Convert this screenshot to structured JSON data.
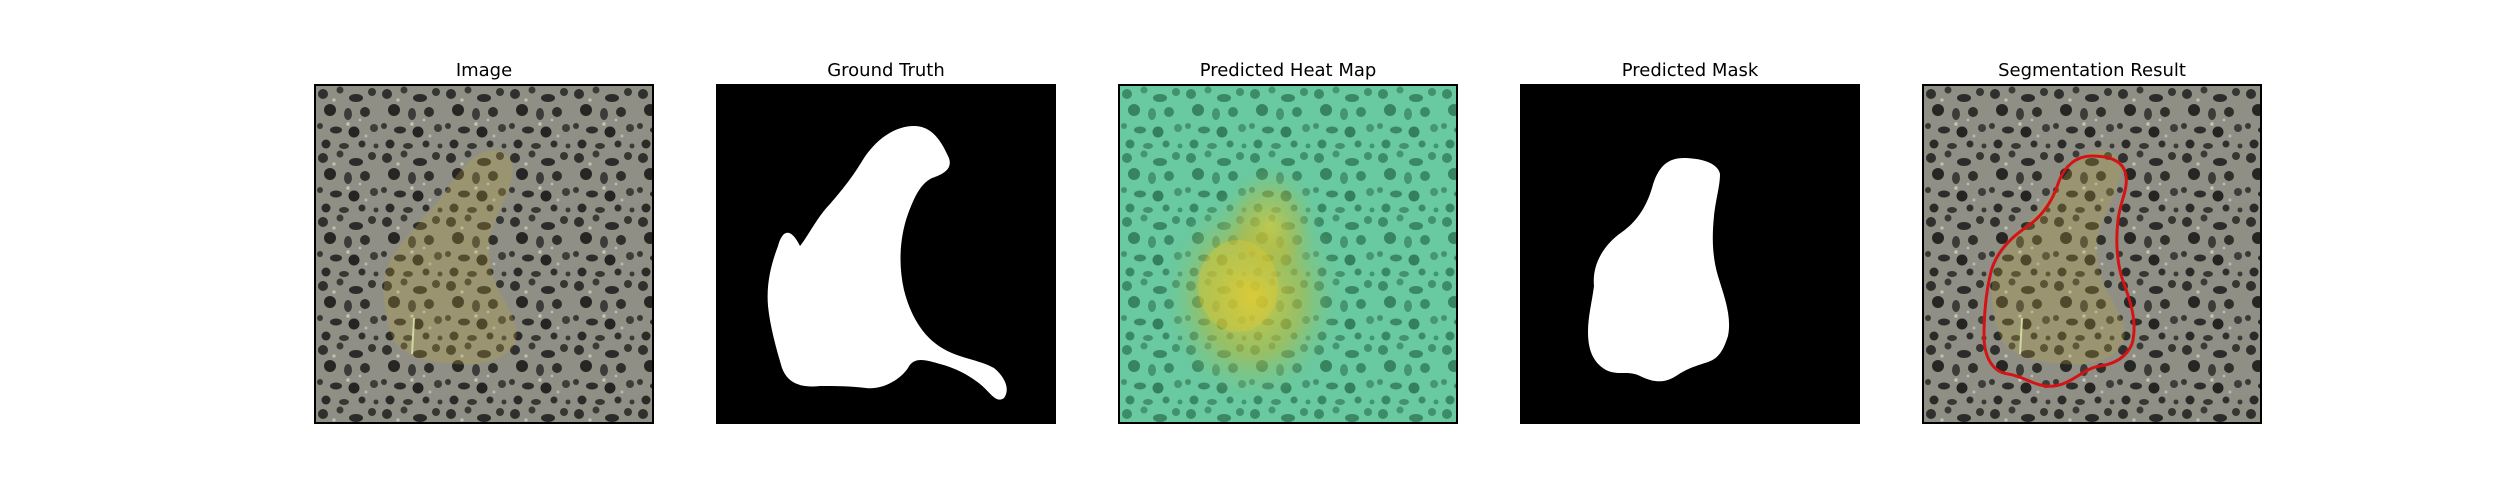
{
  "figure": {
    "panels": [
      {
        "title": "Image"
      },
      {
        "title": "Ground Truth"
      },
      {
        "title": "Predicted Heat Map"
      },
      {
        "title": "Predicted Mask"
      },
      {
        "title": "Segmentation Result"
      }
    ]
  },
  "colors": {
    "background": "#ffffff",
    "frame": "#000000",
    "texture_light": "#8f8f86",
    "texture_dark": "#2f2f2d",
    "object_tint": "#b9a33c",
    "mask_foreground": "#ffffff",
    "mask_background": "#000000",
    "heatmap_cool": "#58c49a",
    "heatmap_warm": "#e1c83c",
    "contour": "#d41414"
  }
}
